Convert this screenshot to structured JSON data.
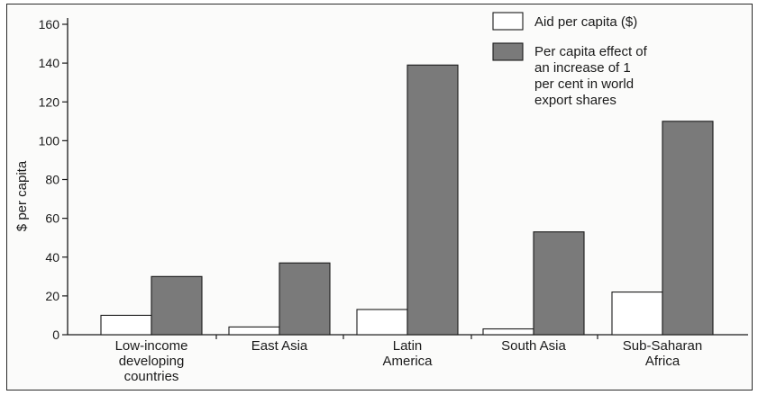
{
  "chart_data": {
    "type": "bar",
    "title": "",
    "xlabel": "",
    "ylabel": "$ per capita",
    "ylim": [
      0,
      160
    ],
    "yticks": [
      "0",
      "20",
      "40",
      "60",
      "80",
      "100",
      "120",
      "140",
      "160"
    ],
    "categories": [
      [
        "Low-income",
        "developing",
        "countries"
      ],
      [
        "East Asia"
      ],
      [
        "Latin",
        "America"
      ],
      [
        "South Asia"
      ],
      [
        "Sub-Saharan",
        "Africa"
      ]
    ],
    "series": [
      {
        "name": "Aid per capita ($)",
        "color": "#ffffff",
        "values": [
          10,
          4,
          13,
          3,
          22
        ]
      },
      {
        "name": "Per capita effect of an increase of 1 per cent in world export shares",
        "name_lines": [
          "Per capita effect of",
          "an increase of 1",
          "per cent in world",
          "export shares"
        ],
        "color": "#7a7a7a",
        "values": [
          30,
          37,
          139,
          53,
          110
        ]
      }
    ],
    "legend": "top-right",
    "grid": false
  }
}
